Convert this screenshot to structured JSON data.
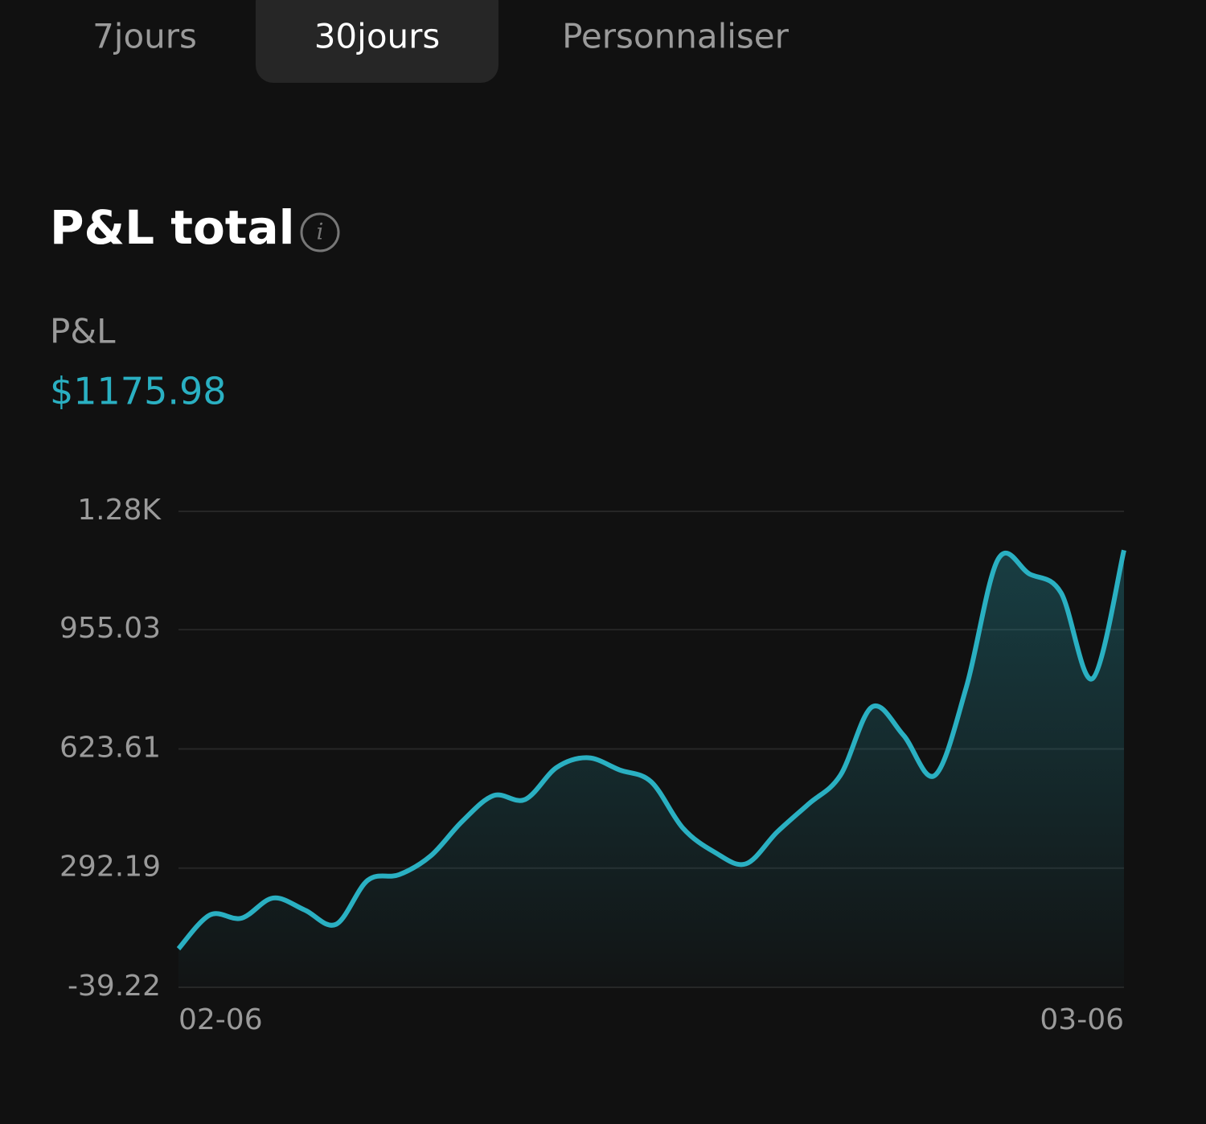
{
  "tabs": [
    "7jours",
    "30jours",
    "Personnaliser"
  ],
  "header": {
    "title": "P&L total",
    "label": "P&L",
    "value": "$1175.98"
  },
  "chart_data": {
    "type": "line",
    "categories": [
      "02-06",
      null,
      null,
      null,
      null,
      null,
      null,
      null,
      null,
      null,
      null,
      null,
      null,
      null,
      null,
      null,
      null,
      null,
      null,
      null,
      null,
      null,
      null,
      null,
      null,
      null,
      null,
      null,
      null,
      null,
      "03-06"
    ],
    "series": [
      {
        "name": "P&L",
        "color": "#2ab0c2",
        "values": [
          68,
          162,
          153,
          209,
          176,
          136,
          258,
          274,
          326,
          422,
          494,
          483,
          572,
          599,
          565,
          532,
          404,
          337,
          304,
          393,
          471,
          550,
          740,
          662,
          550,
          796,
          1150,
          1110,
          1058,
          819,
          1176
        ]
      }
    ],
    "ylim": [
      -39.22,
      1284
    ],
    "yticks": [
      -39.22,
      292.19,
      623.61,
      955.03,
      {
        "value": 1284,
        "label": "1.28K"
      }
    ],
    "grid": true
  }
}
